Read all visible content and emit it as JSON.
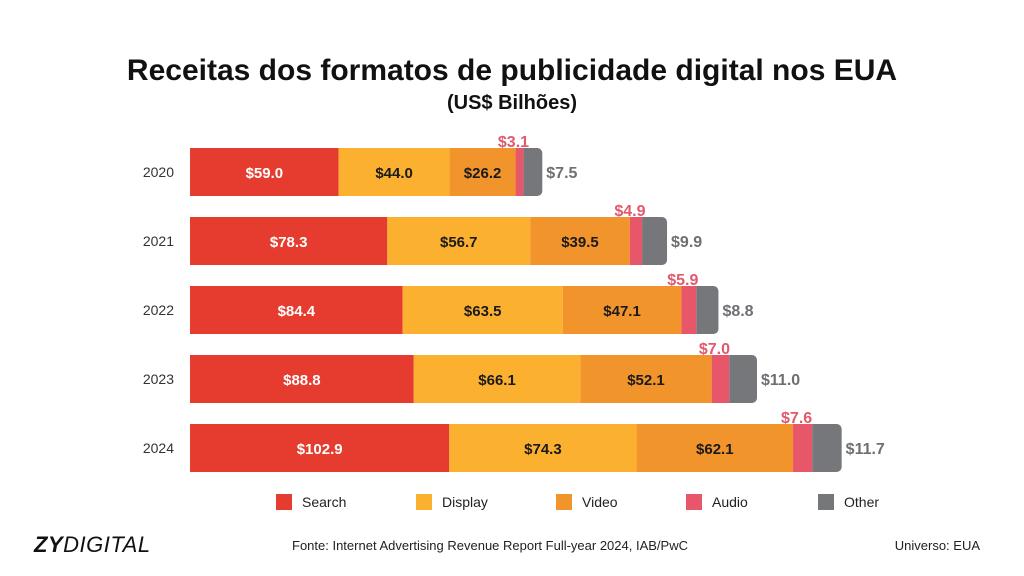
{
  "header": {
    "title": "Receitas dos formatos de publicidade digital nos EUA",
    "subtitle": "(US$ Bilhões)"
  },
  "chart_data": {
    "type": "bar",
    "orientation": "horizontal",
    "stacked": true,
    "categories": [
      "2020",
      "2021",
      "2022",
      "2023",
      "2024"
    ],
    "series": [
      {
        "name": "Search",
        "color": "#E63C30",
        "values": [
          59.0,
          78.3,
          84.4,
          88.8,
          102.9
        ],
        "labels": [
          "$59.0",
          "$78.3",
          "$84.4",
          "$88.8",
          "$102.9"
        ]
      },
      {
        "name": "Display",
        "color": "#FBB12F",
        "values": [
          44.0,
          56.7,
          63.5,
          66.1,
          74.3
        ],
        "labels": [
          "$44.0",
          "$56.7",
          "$63.5",
          "$66.1",
          "$74.3"
        ]
      },
      {
        "name": "Video",
        "color": "#F2942C",
        "values": [
          26.2,
          39.5,
          47.1,
          52.1,
          62.1
        ],
        "labels": [
          "$26.2",
          "$39.5",
          "$47.1",
          "$52.1",
          "$62.1"
        ]
      },
      {
        "name": "Audio",
        "color": "#E8566A",
        "values": [
          3.1,
          4.9,
          5.9,
          7.0,
          7.6
        ],
        "labels": [
          "$3.1",
          "$4.9",
          "$5.9",
          "$7.0",
          "$7.6"
        ]
      },
      {
        "name": "Other",
        "color": "#76777B",
        "values": [
          7.5,
          9.9,
          8.8,
          11.0,
          11.7
        ],
        "labels": [
          "$7.5",
          "$9.9",
          "$8.8",
          "$11.0",
          "$11.7"
        ]
      }
    ],
    "legend_position": "bottom",
    "grid": false
  },
  "footer": {
    "brand_bold": "ZY",
    "brand_light": "DIGITAL",
    "source": "Fonte: Internet Advertising Revenue Report Full-year 2024, IAB/PwC",
    "universe": "Universo: EUA"
  }
}
